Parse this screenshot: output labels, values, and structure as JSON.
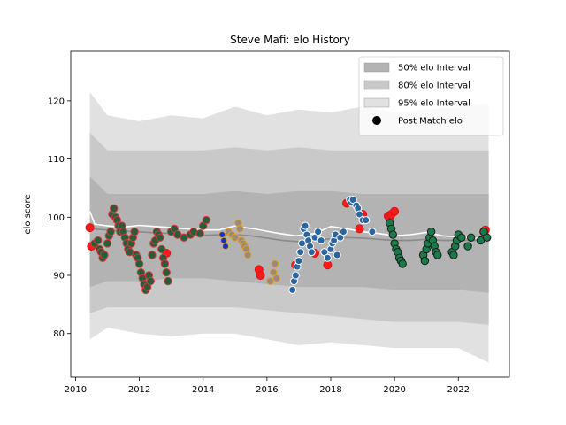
{
  "chart_data": {
    "type": "scatter",
    "title": "Steve Mafi: elo History",
    "xlabel": "",
    "ylabel": "elo score",
    "xlim": [
      2009.85,
      2023.6
    ],
    "ylim": [
      72.5,
      128.5
    ],
    "xticks": [
      2010,
      2012,
      2014,
      2016,
      2018,
      2020,
      2022
    ],
    "yticks": [
      80,
      90,
      100,
      110,
      120
    ],
    "grid": false,
    "legend_position": "top-right",
    "legend": [
      {
        "label": "50% elo Interval",
        "color": "#b3b3b3",
        "kind": "patch"
      },
      {
        "label": "80% elo Interval",
        "color": "#c9c9c9",
        "kind": "patch"
      },
      {
        "label": "95% elo Interval",
        "color": "#e1e1e1",
        "kind": "patch"
      },
      {
        "label": "Post Match elo",
        "color": "#000000",
        "kind": "marker"
      }
    ],
    "bands": {
      "x": [
        2010.45,
        2011.0,
        2012.0,
        2013.0,
        2014.0,
        2015.0,
        2016.0,
        2017.0,
        2018.0,
        2019.0,
        2020.0,
        2021.0,
        2022.0,
        2022.95
      ],
      "p95_upper": [
        121.5,
        117.5,
        116.5,
        117.5,
        117.0,
        119.0,
        117.5,
        118.5,
        118.0,
        119.0,
        118.0,
        118.5,
        119.0,
        119.5
      ],
      "p95_lower": [
        79.0,
        81.0,
        80.0,
        79.5,
        80.0,
        80.0,
        79.0,
        78.0,
        78.5,
        78.0,
        77.5,
        77.5,
        77.5,
        75.0
      ],
      "p80_upper": [
        114.5,
        111.5,
        111.5,
        111.5,
        111.5,
        112.0,
        111.5,
        112.0,
        111.5,
        111.5,
        111.5,
        111.5,
        111.5,
        111.5
      ],
      "p80_lower": [
        83.5,
        84.5,
        84.5,
        84.5,
        84.5,
        84.5,
        84.0,
        83.5,
        83.0,
        82.5,
        82.0,
        82.0,
        82.0,
        81.5
      ],
      "p50_upper": [
        107.0,
        104.0,
        104.0,
        104.0,
        104.0,
        104.5,
        104.0,
        104.5,
        104.5,
        104.0,
        104.0,
        104.0,
        104.0,
        104.0
      ],
      "p50_lower": [
        88.0,
        89.0,
        89.0,
        89.5,
        89.5,
        89.0,
        88.5,
        88.0,
        88.0,
        88.0,
        87.5,
        87.5,
        87.5,
        87.0
      ]
    },
    "series": [
      {
        "kind": "line",
        "color": "#ffffff",
        "x": [
          2010.45,
          2010.6,
          2011.0,
          2011.5,
          2012.0,
          2012.5,
          2013.0,
          2013.5,
          2014.0,
          2014.5,
          2015.0,
          2015.3,
          2015.6,
          2016.0,
          2016.4,
          2016.9,
          2017.2,
          2017.5,
          2018.0,
          2018.5,
          2019.0,
          2019.5,
          2020.0,
          2020.5,
          2021.0,
          2021.5,
          2022.0,
          2022.5,
          2022.95
        ],
        "y": [
          101.0,
          98.8,
          98.5,
          98.3,
          98.6,
          98.4,
          98.2,
          98.0,
          97.8,
          97.8,
          98.5,
          98.2,
          98.0,
          97.6,
          97.2,
          96.8,
          97.0,
          97.2,
          98.4,
          98.0,
          97.5,
          97.2,
          96.8,
          97.0,
          97.4,
          96.8,
          96.6,
          96.4,
          96.3
        ]
      },
      {
        "kind": "line",
        "color": "#8a8a8a",
        "x": [
          2010.45,
          2011.0,
          2011.5,
          2012.0,
          2012.5,
          2013.0,
          2013.5,
          2014.0,
          2014.5,
          2015.0,
          2015.5,
          2016.0,
          2016.5,
          2017.0,
          2017.5,
          2018.0,
          2018.5,
          2019.0,
          2019.5,
          2020.0,
          2020.5,
          2021.0,
          2021.5,
          2022.0,
          2022.5,
          2022.95
        ],
        "y": [
          98.0,
          97.8,
          97.6,
          97.5,
          97.3,
          97.2,
          97.0,
          96.9,
          97.0,
          97.0,
          96.8,
          96.4,
          96.0,
          95.8,
          96.0,
          96.3,
          96.5,
          96.4,
          96.2,
          96.0,
          96.0,
          96.2,
          96.0,
          96.0,
          96.0,
          96.0
        ]
      },
      {
        "kind": "points",
        "color": "#ff1a1a",
        "edge": "#d41515",
        "r": 4.5,
        "x": [
          2010.45,
          2010.5,
          2012.85,
          2015.75,
          2015.8,
          2016.9,
          2017.5,
          2017.9,
          2018.5,
          2018.9,
          2019.0,
          2019.8,
          2019.85,
          2019.9,
          2020.0,
          2022.8,
          2022.85
        ],
        "y": [
          98.2,
          95.0,
          93.8,
          91.0,
          90.0,
          91.8,
          93.8,
          91.8,
          102.4,
          98.0,
          100.5,
          100.2,
          100.0,
          100.5,
          101.0,
          97.5,
          97.8
        ]
      },
      {
        "kind": "points",
        "color": "#2a5b3a",
        "edge": "#d63a3a",
        "r": 4.2,
        "x": [
          2010.6,
          2010.7,
          2010.75,
          2010.8,
          2010.85,
          2010.9,
          2011.0,
          2011.05,
          2011.1,
          2011.15,
          2011.2,
          2011.25,
          2011.3,
          2011.35,
          2011.4,
          2011.45,
          2011.5,
          2011.55,
          2011.6,
          2011.65,
          2011.7,
          2011.75,
          2011.8,
          2011.85,
          2011.9,
          2011.95,
          2012.0,
          2012.05,
          2012.1,
          2012.15,
          2012.2,
          2012.25,
          2012.3,
          2012.35,
          2012.4,
          2012.45,
          2012.5,
          2012.55,
          2012.6,
          2012.65,
          2012.7,
          2012.75,
          2012.8,
          2012.85,
          2012.9,
          2013.0,
          2013.1,
          2013.2,
          2013.4,
          2013.6,
          2013.7,
          2013.9,
          2014.0,
          2014.1
        ],
        "y": [
          95.5,
          96.0,
          94.5,
          94.0,
          93.0,
          93.5,
          95.5,
          96.8,
          97.5,
          100.5,
          101.5,
          100.0,
          99.5,
          98.5,
          97.5,
          98.5,
          97.5,
          96.5,
          95.5,
          94.5,
          94.0,
          95.5,
          96.5,
          97.5,
          93.5,
          93.0,
          92.0,
          90.5,
          89.5,
          88.5,
          87.5,
          88.0,
          90.0,
          89.0,
          93.5,
          95.5,
          96.0,
          97.5,
          97.0,
          96.5,
          94.5,
          93.0,
          92.0,
          90.5,
          89.0,
          97.5,
          98.0,
          97.0,
          96.5,
          97.0,
          97.5,
          97.2,
          98.5,
          99.5
        ]
      },
      {
        "kind": "points",
        "color": "#1530d4",
        "edge": "#e0a030",
        "r": 3.5,
        "x": [
          2014.6,
          2014.65,
          2014.7
        ],
        "y": [
          97.0,
          96.0,
          95.0
        ]
      },
      {
        "kind": "points",
        "color": "#9a8a7a",
        "edge": "#e0a030",
        "r": 3.8,
        "x": [
          2014.8,
          2014.9,
          2015.0,
          2015.1,
          2015.15,
          2015.2,
          2015.25,
          2015.3,
          2015.35,
          2015.4,
          2016.1,
          2016.2,
          2016.25,
          2016.3
        ],
        "y": [
          97.5,
          97.0,
          96.5,
          99.0,
          98.0,
          96.0,
          95.5,
          95.0,
          94.5,
          93.5,
          89.0,
          90.5,
          92.0,
          89.5
        ]
      },
      {
        "kind": "points",
        "color": "#2a65a0",
        "edge": "#ffffff",
        "r": 4.0,
        "x": [
          2016.8,
          2016.85,
          2016.9,
          2016.95,
          2017.0,
          2017.05,
          2017.1,
          2017.15,
          2017.2,
          2017.25,
          2017.3,
          2017.35,
          2017.4,
          2017.5,
          2017.6,
          2017.7,
          2017.8,
          2017.9,
          2018.0,
          2018.05,
          2018.1,
          2018.15,
          2018.2,
          2018.3,
          2018.4,
          2018.6,
          2018.65,
          2018.7,
          2018.8,
          2018.85,
          2018.9,
          2019.0,
          2019.1,
          2019.3
        ],
        "y": [
          87.5,
          89.0,
          90.0,
          91.5,
          92.5,
          94.0,
          95.5,
          98.0,
          98.5,
          97.0,
          96.0,
          95.0,
          94.0,
          96.5,
          97.5,
          96.0,
          94.0,
          93.0,
          94.5,
          95.5,
          96.0,
          97.0,
          93.5,
          96.5,
          97.5,
          103.0,
          102.5,
          103.0,
          102.0,
          101.5,
          100.5,
          99.5,
          99.5,
          97.5
        ]
      },
      {
        "kind": "points",
        "color": "#1a7a4a",
        "edge": "#1a1a1a",
        "r": 4.2,
        "x": [
          2019.85,
          2019.9,
          2019.95,
          2020.0,
          2020.05,
          2020.1,
          2020.15,
          2020.2,
          2020.25,
          2020.9,
          2020.95,
          2021.0,
          2021.05,
          2021.1,
          2021.15,
          2021.2,
          2021.25,
          2021.3,
          2021.35,
          2021.8,
          2021.85,
          2021.9,
          2021.95,
          2022.0,
          2022.1,
          2022.3,
          2022.4,
          2022.7,
          2022.8,
          2022.9
        ],
        "y": [
          99.0,
          98.0,
          97.0,
          95.5,
          94.5,
          94.0,
          93.0,
          92.5,
          92.0,
          93.5,
          92.5,
          94.5,
          95.5,
          96.5,
          97.5,
          96.0,
          95.0,
          94.0,
          93.5,
          94.0,
          93.5,
          95.0,
          96.0,
          97.0,
          96.5,
          95.0,
          96.5,
          96.0,
          97.5,
          96.5
        ]
      }
    ]
  }
}
